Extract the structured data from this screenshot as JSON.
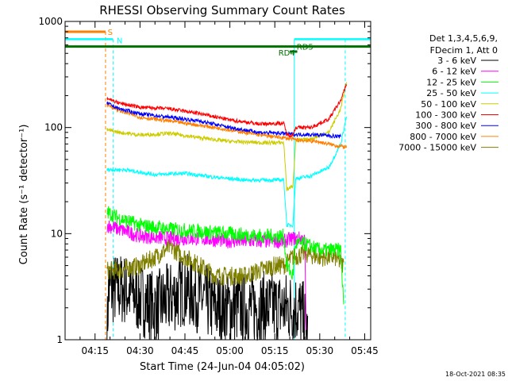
{
  "chart_data": {
    "type": "line",
    "title": "RHESSI Observing Summary Count Rates",
    "xlabel": "Start Time (24-Jun-04 04:05:02)",
    "ylabel": "Count Rate (s⁻¹ detector⁻¹)",
    "yscale": "log",
    "ylim": [
      1,
      1000
    ],
    "xlim_min": [
      0,
      102
    ],
    "x_ticks": [
      {
        "label": "04:15",
        "t": 10
      },
      {
        "label": "04:30",
        "t": 25
      },
      {
        "label": "04:45",
        "t": 40
      },
      {
        "label": "05:00",
        "t": 55
      },
      {
        "label": "05:15",
        "t": 70
      },
      {
        "label": "05:30",
        "t": 85
      },
      {
        "label": "05:45",
        "t": 100
      }
    ],
    "y_ticks": [
      {
        "label": "1",
        "v": 1
      },
      {
        "label": "10",
        "v": 10
      },
      {
        "label": "100",
        "v": 100
      },
      {
        "label": "1000",
        "v": 1000
      }
    ],
    "legend_header": [
      "Det 1,3,4,5,6,9,",
      "FDecim 1, Att 0"
    ],
    "legend_position": "right",
    "series": [
      {
        "name": "3 - 6 keV",
        "color": "#000000",
        "points": [
          [
            14,
            1
          ],
          [
            14.5,
            3
          ],
          [
            20,
            3
          ],
          [
            30,
            2
          ],
          [
            40,
            3
          ],
          [
            45,
            2.5
          ],
          [
            50,
            2
          ],
          [
            60,
            2
          ],
          [
            70,
            2
          ],
          [
            78,
            2
          ],
          [
            80,
            1.5
          ],
          [
            81,
            1
          ]
        ]
      },
      {
        "name": "6 - 12 keV",
        "color": "#ff00ff",
        "points": [
          [
            14,
            12
          ],
          [
            18,
            11
          ],
          [
            25,
            9.5
          ],
          [
            35,
            9
          ],
          [
            45,
            9
          ],
          [
            55,
            8.5
          ],
          [
            65,
            8.5
          ],
          [
            73,
            8.5
          ],
          [
            76,
            9
          ],
          [
            79,
            9
          ],
          [
            80,
            8.5
          ],
          [
            80.5,
            1
          ]
        ]
      },
      {
        "name": "12 - 25 keV",
        "color": "#00ff00",
        "points": [
          [
            14,
            16
          ],
          [
            18,
            14
          ],
          [
            25,
            12
          ],
          [
            35,
            11
          ],
          [
            45,
            10.5
          ],
          [
            55,
            10
          ],
          [
            65,
            9.5
          ],
          [
            73,
            9.5
          ],
          [
            74,
            5
          ],
          [
            76,
            4
          ],
          [
            77,
            8
          ],
          [
            80,
            8
          ],
          [
            85,
            7
          ],
          [
            92,
            7
          ],
          [
            93,
            2
          ]
        ]
      },
      {
        "name": "25 - 50 keV",
        "color": "#00ffff",
        "points": [
          [
            14,
            40
          ],
          [
            20,
            40
          ],
          [
            30,
            36
          ],
          [
            40,
            37
          ],
          [
            50,
            34
          ],
          [
            60,
            32
          ],
          [
            70,
            32
          ],
          [
            73,
            32
          ],
          [
            74,
            12
          ],
          [
            76,
            12
          ],
          [
            77,
            33
          ],
          [
            82,
            35
          ],
          [
            88,
            42
          ],
          [
            92,
            70
          ],
          [
            94,
            130
          ]
        ]
      },
      {
        "name": "50 - 100 keV",
        "color": "#cccc00",
        "points": [
          [
            14,
            95
          ],
          [
            18,
            90
          ],
          [
            25,
            85
          ],
          [
            35,
            88
          ],
          [
            45,
            80
          ],
          [
            55,
            74
          ],
          [
            65,
            72
          ],
          [
            73,
            72
          ],
          [
            74,
            26
          ],
          [
            76,
            28
          ],
          [
            77,
            75
          ],
          [
            82,
            78
          ],
          [
            88,
            90
          ],
          [
            92,
            150
          ],
          [
            94,
            280
          ]
        ]
      },
      {
        "name": "100 - 300 keV",
        "color": "#ff0000",
        "points": [
          [
            14,
            190
          ],
          [
            18,
            170
          ],
          [
            25,
            155
          ],
          [
            35,
            150
          ],
          [
            45,
            135
          ],
          [
            55,
            118
          ],
          [
            65,
            108
          ],
          [
            73,
            110
          ],
          [
            74,
            85
          ],
          [
            76,
            85
          ],
          [
            77,
            100
          ],
          [
            82,
            100
          ],
          [
            88,
            120
          ],
          [
            92,
            180
          ],
          [
            94,
            260
          ]
        ]
      },
      {
        "name": "300 - 800 keV",
        "color": "#0000ff",
        "points": [
          [
            14,
            170
          ],
          [
            18,
            150
          ],
          [
            25,
            135
          ],
          [
            35,
            125
          ],
          [
            45,
            115
          ],
          [
            55,
            100
          ],
          [
            65,
            90
          ],
          [
            73,
            88
          ],
          [
            76,
            86
          ],
          [
            80,
            86
          ],
          [
            86,
            85
          ],
          [
            92,
            82
          ]
        ]
      },
      {
        "name": "800 - 7000 keV",
        "color": "#ff8000",
        "points": [
          [
            14,
            165
          ],
          [
            18,
            145
          ],
          [
            25,
            125
          ],
          [
            35,
            115
          ],
          [
            45,
            105
          ],
          [
            55,
            95
          ],
          [
            65,
            85
          ],
          [
            73,
            80
          ],
          [
            78,
            76
          ],
          [
            84,
            74
          ],
          [
            90,
            68
          ],
          [
            94,
            65
          ]
        ]
      },
      {
        "name": "7000 - 15000 keV",
        "color": "#808000",
        "points": [
          [
            14,
            4.5
          ],
          [
            18,
            4.5
          ],
          [
            25,
            5
          ],
          [
            30,
            6
          ],
          [
            35,
            7.5
          ],
          [
            40,
            6
          ],
          [
            45,
            5
          ],
          [
            50,
            4
          ],
          [
            55,
            4
          ],
          [
            60,
            4
          ],
          [
            65,
            4.5
          ],
          [
            70,
            5
          ],
          [
            73,
            5
          ],
          [
            76,
            6
          ],
          [
            80,
            6.5
          ],
          [
            85,
            6
          ],
          [
            90,
            6
          ],
          [
            93,
            5
          ]
        ]
      }
    ],
    "annotations": [
      {
        "text": "S",
        "color": "#ff8000"
      },
      {
        "text": "N",
        "color": "#00ffff"
      },
      {
        "text": "RD4",
        "color": "#007000"
      },
      {
        "text": "RD5",
        "color": "#007000"
      }
    ],
    "timestamp": "18-Oct-2021 08:35"
  }
}
